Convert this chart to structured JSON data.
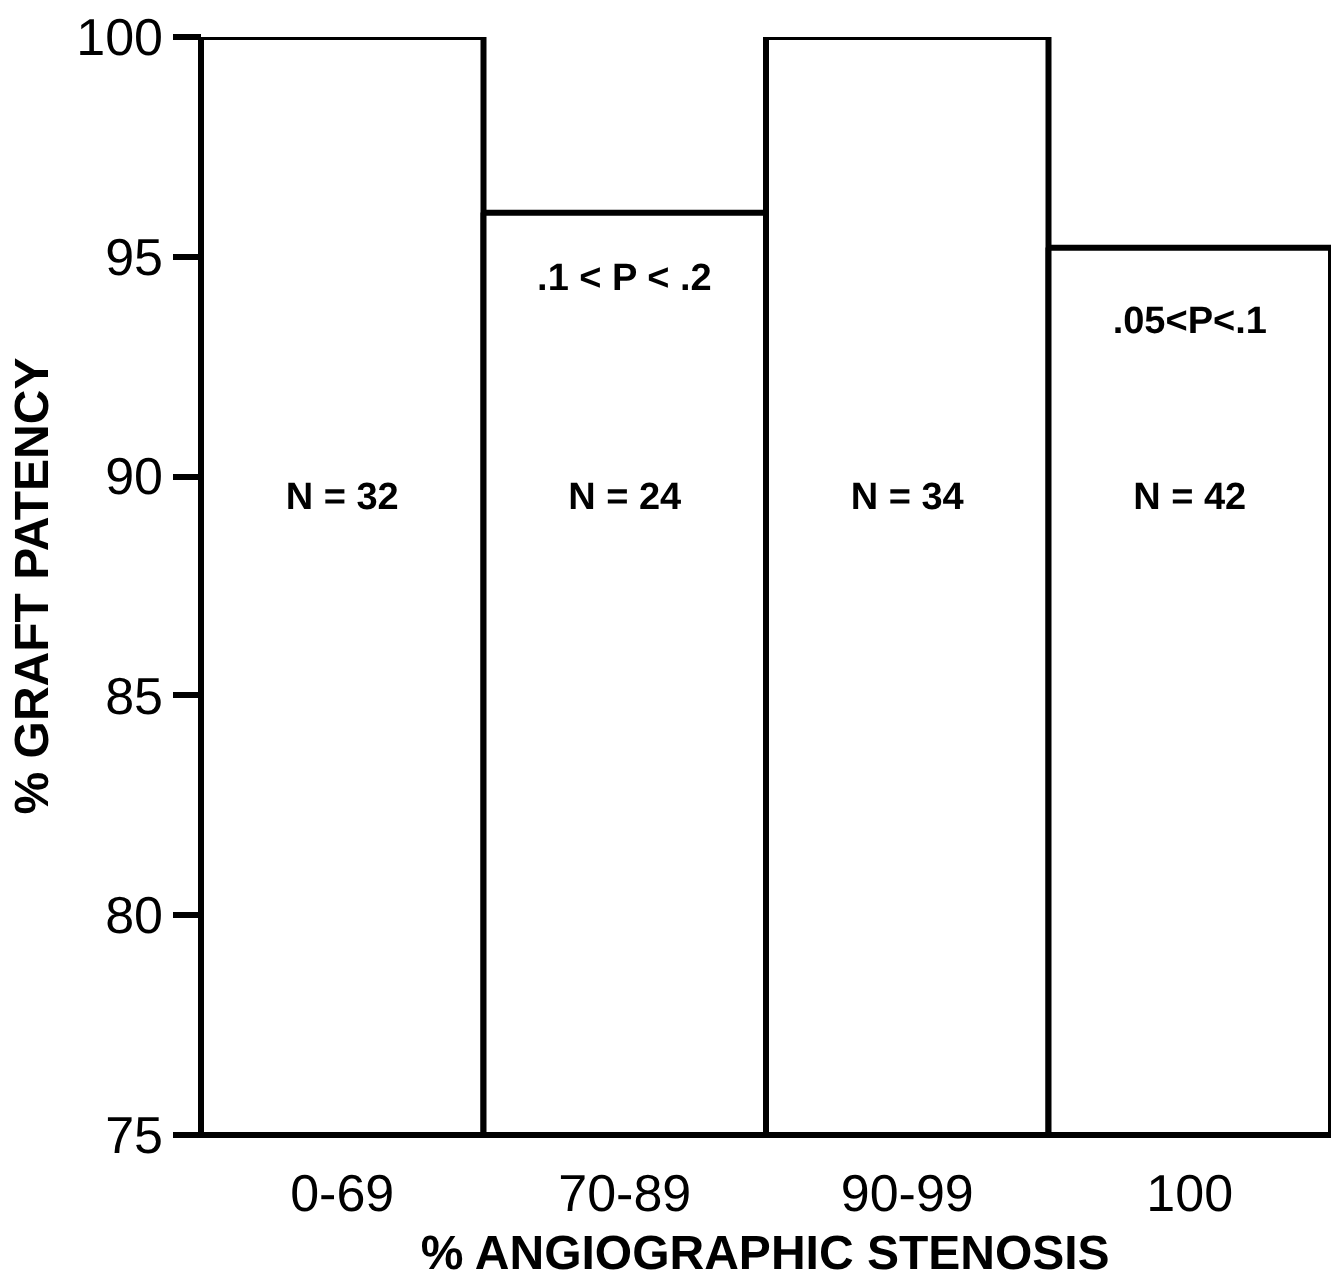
{
  "chart_data": {
    "type": "bar",
    "xlabel": "% ANGIOGRAPHIC STENOSIS",
    "ylabel": "% GRAFT PATENCY",
    "categories": [
      "0-69",
      "70-89",
      "90-99",
      "100"
    ],
    "values": [
      100,
      96,
      100,
      95.2
    ],
    "color": "#ffffff",
    "ylim": [
      75,
      100
    ],
    "yticks": [
      75,
      80,
      85,
      90,
      95,
      100
    ],
    "grid": false,
    "annotations": [
      "N = 32",
      "N = 24",
      "N = 34",
      "N = 42",
      ".1 < P < .2",
      ".05<P<.1"
    ]
  }
}
